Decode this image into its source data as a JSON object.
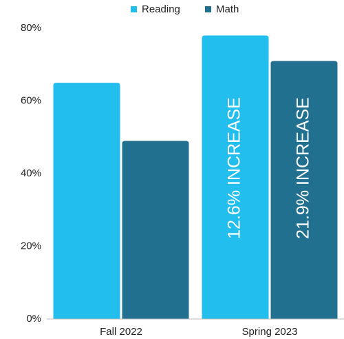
{
  "chart_data": {
    "type": "bar",
    "categories": [
      "Fall 2022",
      "Spring 2023"
    ],
    "series": [
      {
        "name": "Reading",
        "color": "#22bfee",
        "values": [
          65,
          78
        ]
      },
      {
        "name": "Math",
        "color": "#22708f",
        "values": [
          49,
          71
        ]
      }
    ],
    "annotations": [
      "12.6% INCREASE",
      "21.9% INCREASE"
    ],
    "ylim": [
      0,
      80
    ],
    "yticks": [
      {
        "value": 0,
        "label": "0%"
      },
      {
        "value": 20,
        "label": "20%"
      },
      {
        "value": 40,
        "label": "40%"
      },
      {
        "value": 60,
        "label": "60%"
      },
      {
        "value": 80,
        "label": "80%"
      }
    ],
    "grid": false,
    "legend": "top"
  }
}
